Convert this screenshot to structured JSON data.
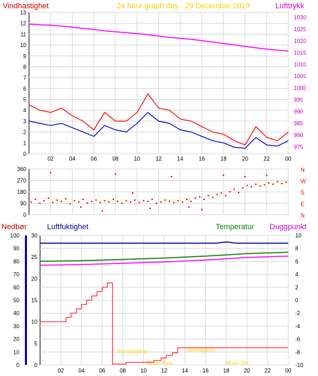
{
  "header": {
    "left_title": "Vindhastighet",
    "center_title": "24 hour graph day - 29 December 2019",
    "right_title": "Lufttrykk"
  },
  "colors": {
    "wind": "#ff0000",
    "wind_avg": "#0000cc",
    "pressure": "#ff00ff",
    "humidity": "#0000aa",
    "temperature": "#008000",
    "dewpoint": "#ff00ff",
    "rain": "#ff3333",
    "sun_label": "#ffff00",
    "right_axis_text": "#cc00cc",
    "grid": "#d8d8d8",
    "axis": "#000000"
  },
  "x_ticks": [
    "02",
    "04",
    "06",
    "08",
    "10",
    "12",
    "14",
    "16",
    "18",
    "20",
    "22",
    "00"
  ],
  "wind_chart": {
    "type": "line",
    "left_axis": {
      "min": 0,
      "max": 13,
      "ticks": [
        "0",
        "1",
        "2",
        "3",
        "4",
        "5",
        "6",
        "7",
        "8",
        "9",
        "10",
        "11",
        "12",
        "13"
      ]
    },
    "right_axis": {
      "min": 972,
      "max": 1032,
      "ticks": [
        "975",
        "980",
        "985",
        "990",
        "995",
        "1000",
        "1005",
        "1010",
        "1015",
        "1020",
        "1025",
        "1030"
      ]
    },
    "pressure_hpa": [
      {
        "h": 0,
        "v": 1027.0
      },
      {
        "h": 1,
        "v": 1026.8
      },
      {
        "h": 2,
        "v": 1026.6
      },
      {
        "h": 3,
        "v": 1026.2
      },
      {
        "h": 4,
        "v": 1025.8
      },
      {
        "h": 5,
        "v": 1025.2
      },
      {
        "h": 6,
        "v": 1024.8
      },
      {
        "h": 7,
        "v": 1024.2
      },
      {
        "h": 8,
        "v": 1023.8
      },
      {
        "h": 9,
        "v": 1023.4
      },
      {
        "h": 10,
        "v": 1023.0
      },
      {
        "h": 11,
        "v": 1022.6
      },
      {
        "h": 12,
        "v": 1022.0
      },
      {
        "h": 13,
        "v": 1021.4
      },
      {
        "h": 14,
        "v": 1021.0
      },
      {
        "h": 15,
        "v": 1020.6
      },
      {
        "h": 16,
        "v": 1020.0
      },
      {
        "h": 17,
        "v": 1019.4
      },
      {
        "h": 18,
        "v": 1018.8
      },
      {
        "h": 19,
        "v": 1018.2
      },
      {
        "h": 20,
        "v": 1017.6
      },
      {
        "h": 21,
        "v": 1017.0
      },
      {
        "h": 22,
        "v": 1016.4
      },
      {
        "h": 23,
        "v": 1016.0
      },
      {
        "h": 24,
        "v": 1015.6
      }
    ],
    "wind_gust_ms": [
      {
        "h": 0,
        "v": 4.5
      },
      {
        "h": 1,
        "v": 4.0
      },
      {
        "h": 2,
        "v": 3.8
      },
      {
        "h": 3,
        "v": 4.2
      },
      {
        "h": 4,
        "v": 3.5
      },
      {
        "h": 5,
        "v": 3.0
      },
      {
        "h": 6,
        "v": 2.2
      },
      {
        "h": 7,
        "v": 3.8
      },
      {
        "h": 8,
        "v": 3.0
      },
      {
        "h": 9,
        "v": 3.0
      },
      {
        "h": 10,
        "v": 3.8
      },
      {
        "h": 11,
        "v": 5.5
      },
      {
        "h": 12,
        "v": 4.2
      },
      {
        "h": 13,
        "v": 4.0
      },
      {
        "h": 14,
        "v": 3.2
      },
      {
        "h": 15,
        "v": 3.0
      },
      {
        "h": 16,
        "v": 2.5
      },
      {
        "h": 17,
        "v": 2.0
      },
      {
        "h": 18,
        "v": 1.8
      },
      {
        "h": 19,
        "v": 1.2
      },
      {
        "h": 20,
        "v": 0.8
      },
      {
        "h": 21,
        "v": 2.5
      },
      {
        "h": 22,
        "v": 1.5
      },
      {
        "h": 23,
        "v": 1.2
      },
      {
        "h": 24,
        "v": 2.0
      }
    ],
    "wind_avg_ms": [
      {
        "h": 0,
        "v": 3.0
      },
      {
        "h": 1,
        "v": 2.8
      },
      {
        "h": 2,
        "v": 2.6
      },
      {
        "h": 3,
        "v": 2.8
      },
      {
        "h": 4,
        "v": 2.4
      },
      {
        "h": 5,
        "v": 2.0
      },
      {
        "h": 6,
        "v": 1.6
      },
      {
        "h": 7,
        "v": 2.6
      },
      {
        "h": 8,
        "v": 2.2
      },
      {
        "h": 9,
        "v": 2.0
      },
      {
        "h": 10,
        "v": 2.8
      },
      {
        "h": 11,
        "v": 3.8
      },
      {
        "h": 12,
        "v": 3.0
      },
      {
        "h": 13,
        "v": 2.8
      },
      {
        "h": 14,
        "v": 2.2
      },
      {
        "h": 15,
        "v": 2.0
      },
      {
        "h": 16,
        "v": 1.6
      },
      {
        "h": 17,
        "v": 1.2
      },
      {
        "h": 18,
        "v": 1.0
      },
      {
        "h": 19,
        "v": 0.6
      },
      {
        "h": 20,
        "v": 0.5
      },
      {
        "h": 21,
        "v": 1.5
      },
      {
        "h": 22,
        "v": 0.8
      },
      {
        "h": 23,
        "v": 0.7
      },
      {
        "h": 24,
        "v": 1.2
      }
    ]
  },
  "direction_chart": {
    "type": "scatter",
    "left_axis": {
      "min": 0,
      "max": 360,
      "ticks": [
        "0",
        "90",
        "180",
        "270",
        "360"
      ],
      "tick_values": [
        0,
        90,
        180,
        270,
        360
      ]
    },
    "right_labels": [
      "N",
      "W",
      "S",
      "E",
      "N"
    ],
    "points": [
      {
        "h": 0.2,
        "v": 100
      },
      {
        "h": 0.6,
        "v": 120
      },
      {
        "h": 1.0,
        "v": 90
      },
      {
        "h": 1.4,
        "v": 110
      },
      {
        "h": 1.8,
        "v": 130
      },
      {
        "h": 2.2,
        "v": 95
      },
      {
        "h": 2.6,
        "v": 115
      },
      {
        "h": 3.0,
        "v": 105
      },
      {
        "h": 3.4,
        "v": 125
      },
      {
        "h": 3.8,
        "v": 85
      },
      {
        "h": 4.2,
        "v": 110
      },
      {
        "h": 4.6,
        "v": 100
      },
      {
        "h": 5.0,
        "v": 120
      },
      {
        "h": 5.4,
        "v": 90
      },
      {
        "h": 5.8,
        "v": 105
      },
      {
        "h": 6.2,
        "v": 115
      },
      {
        "h": 6.6,
        "v": 95
      },
      {
        "h": 7.0,
        "v": 110
      },
      {
        "h": 7.4,
        "v": 100
      },
      {
        "h": 7.8,
        "v": 120
      },
      {
        "h": 8.2,
        "v": 105
      },
      {
        "h": 8.6,
        "v": 90
      },
      {
        "h": 9.0,
        "v": 110
      },
      {
        "h": 9.4,
        "v": 100
      },
      {
        "h": 9.8,
        "v": 115
      },
      {
        "h": 10.2,
        "v": 95
      },
      {
        "h": 10.6,
        "v": 110
      },
      {
        "h": 11.0,
        "v": 105
      },
      {
        "h": 11.4,
        "v": 120
      },
      {
        "h": 11.8,
        "v": 90
      },
      {
        "h": 12.2,
        "v": 100
      },
      {
        "h": 12.6,
        "v": 115
      },
      {
        "h": 13.0,
        "v": 105
      },
      {
        "h": 13.4,
        "v": 95
      },
      {
        "h": 13.8,
        "v": 110
      },
      {
        "h": 14.2,
        "v": 100
      },
      {
        "h": 14.6,
        "v": 120
      },
      {
        "h": 15.0,
        "v": 105
      },
      {
        "h": 15.4,
        "v": 130
      },
      {
        "h": 15.8,
        "v": 140
      },
      {
        "h": 16.2,
        "v": 120
      },
      {
        "h": 16.6,
        "v": 150
      },
      {
        "h": 17.0,
        "v": 135
      },
      {
        "h": 17.4,
        "v": 160
      },
      {
        "h": 17.8,
        "v": 170
      },
      {
        "h": 18.2,
        "v": 150
      },
      {
        "h": 18.6,
        "v": 180
      },
      {
        "h": 19.0,
        "v": 200
      },
      {
        "h": 19.4,
        "v": 175
      },
      {
        "h": 19.8,
        "v": 210
      },
      {
        "h": 20.2,
        "v": 230
      },
      {
        "h": 20.6,
        "v": 220
      },
      {
        "h": 21.0,
        "v": 240
      },
      {
        "h": 21.4,
        "v": 225
      },
      {
        "h": 21.8,
        "v": 235
      },
      {
        "h": 22.2,
        "v": 250
      },
      {
        "h": 22.6,
        "v": 240
      },
      {
        "h": 23.0,
        "v": 260
      },
      {
        "h": 23.4,
        "v": 245
      },
      {
        "h": 23.8,
        "v": 255
      },
      {
        "h": 2.0,
        "v": 330
      },
      {
        "h": 6.8,
        "v": 30
      },
      {
        "h": 8.0,
        "v": 320
      },
      {
        "h": 11.2,
        "v": 50
      },
      {
        "h": 13.2,
        "v": 300
      },
      {
        "h": 16.0,
        "v": 40
      },
      {
        "h": 18.0,
        "v": 310
      },
      {
        "h": 20.0,
        "v": 300
      },
      {
        "h": 22.0,
        "v": 310
      },
      {
        "h": 4.8,
        "v": 60
      },
      {
        "h": 9.6,
        "v": 170
      },
      {
        "h": 14.8,
        "v": 60
      }
    ]
  },
  "bottom_labels": {
    "rain": "Nedbør",
    "humidity": "Luftfuktighet",
    "temperature": "Temperatur",
    "dewpoint": "Duggpunkt"
  },
  "bottom_chart": {
    "type": "line",
    "rain_axis": {
      "min": 0,
      "max": 100,
      "ticks": [
        "0",
        "10",
        "20",
        "30",
        "40",
        "50",
        "60",
        "70",
        "80",
        "90",
        "100"
      ]
    },
    "humidity_axis": {
      "min": 0,
      "max": 30,
      "ticks": [
        "0",
        "5",
        "10",
        "15",
        "20",
        "25",
        "30"
      ]
    },
    "temp_axis": {
      "min": -10,
      "max": 10,
      "ticks": [
        "-10",
        "-8",
        "-6",
        "-4",
        "-2",
        "0",
        "2",
        "4",
        "6",
        "8",
        "10"
      ]
    },
    "humidity_pct": [
      {
        "h": 0,
        "v": 94
      },
      {
        "h": 6,
        "v": 94
      },
      {
        "h": 12,
        "v": 94
      },
      {
        "h": 17,
        "v": 94
      },
      {
        "h": 18,
        "v": 95
      },
      {
        "h": 19,
        "v": 94
      },
      {
        "h": 24,
        "v": 94
      }
    ],
    "temperature_c": [
      {
        "h": 0,
        "v": 6.0
      },
      {
        "h": 4,
        "v": 6.1
      },
      {
        "h": 8,
        "v": 6.3
      },
      {
        "h": 12,
        "v": 6.5
      },
      {
        "h": 16,
        "v": 6.8
      },
      {
        "h": 18,
        "v": 7.0
      },
      {
        "h": 20,
        "v": 7.2
      },
      {
        "h": 24,
        "v": 7.4
      }
    ],
    "dewpoint_c": [
      {
        "h": 0,
        "v": 5.4
      },
      {
        "h": 4,
        "v": 5.5
      },
      {
        "h": 8,
        "v": 5.7
      },
      {
        "h": 12,
        "v": 5.9
      },
      {
        "h": 16,
        "v": 6.2
      },
      {
        "h": 18,
        "v": 6.4
      },
      {
        "h": 20,
        "v": 6.6
      },
      {
        "h": 24,
        "v": 6.8
      }
    ],
    "rain_mm": [
      {
        "h": 0,
        "v": 10
      },
      {
        "h": 2.5,
        "v": 10
      },
      {
        "h": 2.5,
        "v": 11
      },
      {
        "h": 3.0,
        "v": 11
      },
      {
        "h": 3.0,
        "v": 12
      },
      {
        "h": 3.5,
        "v": 12
      },
      {
        "h": 3.5,
        "v": 13
      },
      {
        "h": 4.0,
        "v": 13
      },
      {
        "h": 4.0,
        "v": 14
      },
      {
        "h": 4.5,
        "v": 14
      },
      {
        "h": 4.5,
        "v": 15
      },
      {
        "h": 5.0,
        "v": 15
      },
      {
        "h": 5.0,
        "v": 16
      },
      {
        "h": 5.5,
        "v": 16
      },
      {
        "h": 5.5,
        "v": 17
      },
      {
        "h": 6.0,
        "v": 17
      },
      {
        "h": 6.0,
        "v": 18
      },
      {
        "h": 6.5,
        "v": 18
      },
      {
        "h": 6.5,
        "v": 19
      },
      {
        "h": 7.0,
        "v": 19
      },
      {
        "h": 7.0,
        "v": 0.2
      },
      {
        "h": 8.3,
        "v": 0.2
      },
      {
        "h": 8.3,
        "v": 0.6
      },
      {
        "h": 11.0,
        "v": 0.6
      },
      {
        "h": 11.0,
        "v": 1.0
      },
      {
        "h": 11.7,
        "v": 1.0
      },
      {
        "h": 11.7,
        "v": 1.6
      },
      {
        "h": 12.2,
        "v": 1.6
      },
      {
        "h": 12.2,
        "v": 2.2
      },
      {
        "h": 12.8,
        "v": 2.2
      },
      {
        "h": 12.8,
        "v": 2.8
      },
      {
        "h": 13.3,
        "v": 2.8
      },
      {
        "h": 13.3,
        "v": 4.0
      },
      {
        "h": 24.0,
        "v": 4.0
      }
    ],
    "annotations": {
      "sunrise": "Soloppgang",
      "sunset": "Solnedgang",
      "moonrise": "Moon Rise",
      "moonset": "Moon Set"
    }
  }
}
